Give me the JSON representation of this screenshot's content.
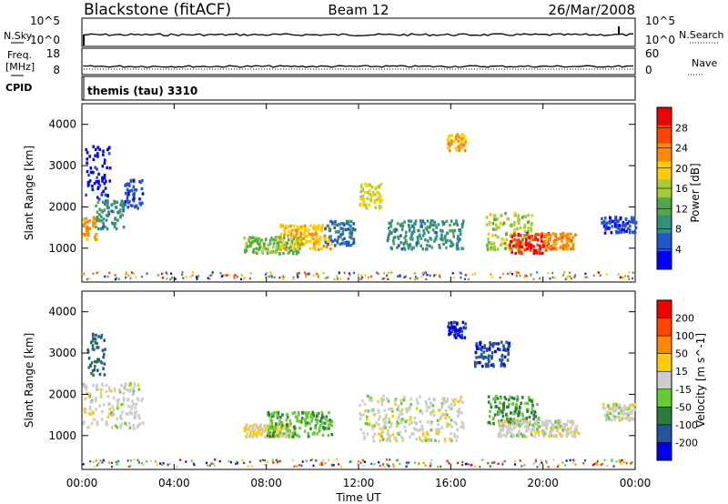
{
  "header": {
    "station": "Blackstone (fitACF)",
    "beam": "Beam 12",
    "date": "26/Mar/2008"
  },
  "left_labels": {
    "nsky": "N.Sky",
    "freq_top": "Freq.",
    "freq_unit": "[MHz]",
    "cpid": "CPID"
  },
  "right_labels": {
    "nsearch": "N.Search",
    "nave": "Nave",
    "nsearch_ticks": [
      "10^5",
      "10^0"
    ],
    "nave_ticks": [
      "60",
      "0"
    ]
  },
  "noise_panel": {
    "left_ticks": [
      "10^5",
      "10^0"
    ],
    "right_ticks": [
      "10^5",
      "10^0"
    ]
  },
  "freq_panel": {
    "left_ticks": [
      "18",
      "8"
    ],
    "right_ticks": [
      "60",
      "0"
    ]
  },
  "cpid_text": "themis (tau) 3310",
  "x_axis": {
    "label": "Time UT",
    "ticks": [
      "00:00",
      "04:00",
      "08:00",
      "12:00",
      "16:00",
      "20:00",
      "00:00"
    ]
  },
  "power_panel": {
    "ylabel": "Slant Range [km]",
    "yticks": [
      "4000",
      "3000",
      "2000",
      "1000"
    ],
    "colorbar_label": "Power [dB]",
    "colorbar_ticks": [
      "28",
      "24",
      "20",
      "16",
      "12",
      "8",
      "4"
    ]
  },
  "velocity_panel": {
    "ylabel": "Slant Range [km]",
    "yticks": [
      "4000",
      "3000",
      "2000",
      "1000"
    ],
    "colorbar_label": "Velocity [m s^-1]",
    "colorbar_ticks": [
      "200",
      "100",
      "50",
      "15",
      "-15",
      "-50",
      "-100",
      "-200"
    ]
  },
  "colors": {
    "power_scale": [
      "#0000ff",
      "#2255cc",
      "#33907f",
      "#55a64a",
      "#a8cc33",
      "#ffcc00",
      "#ff8800",
      "#ff4400",
      "#ee0000"
    ],
    "velocity_scale": [
      "#0000ee",
      "#225599",
      "#2f7a3f",
      "#66cc33",
      "#cccccc",
      "#ffcc00",
      "#ff8800",
      "#ff4400",
      "#ee0000"
    ]
  },
  "chart_data": [
    {
      "type": "heatmap",
      "title": "Power",
      "xlabel": "Time UT",
      "ylabel": "Slant Range [km]",
      "xlim": [
        0,
        24
      ],
      "ylim": [
        180,
        4500
      ],
      "colorbar": {
        "label": "Power [dB]",
        "range": [
          2,
          30
        ]
      },
      "clusters": [
        {
          "t0": 0.0,
          "t1": 0.6,
          "r0": 1200,
          "r1": 1800,
          "value": 22
        },
        {
          "t0": 0.5,
          "t1": 1.8,
          "r0": 1500,
          "r1": 2200,
          "value": 10
        },
        {
          "t0": 1.8,
          "t1": 2.6,
          "r0": 2000,
          "r1": 2700,
          "value": 6
        },
        {
          "t0": 0.1,
          "t1": 1.2,
          "r0": 2200,
          "r1": 3500,
          "value": 4
        },
        {
          "t0": 7.0,
          "t1": 9.5,
          "r0": 900,
          "r1": 1300,
          "value": 14
        },
        {
          "t0": 8.5,
          "t1": 10.8,
          "r0": 1000,
          "r1": 1600,
          "value": 20
        },
        {
          "t0": 10.5,
          "t1": 11.8,
          "r0": 1100,
          "r1": 1700,
          "value": 8
        },
        {
          "t0": 12.0,
          "t1": 13.0,
          "r0": 2000,
          "r1": 2600,
          "value": 18
        },
        {
          "t0": 13.2,
          "t1": 16.5,
          "r0": 1000,
          "r1": 1700,
          "value": 10
        },
        {
          "t0": 15.8,
          "t1": 16.6,
          "r0": 3400,
          "r1": 3800,
          "value": 20
        },
        {
          "t0": 17.5,
          "t1": 19.5,
          "r0": 1000,
          "r1": 1900,
          "value": 16
        },
        {
          "t0": 18.5,
          "t1": 20.2,
          "r0": 900,
          "r1": 1400,
          "value": 27
        },
        {
          "t0": 20.0,
          "t1": 21.4,
          "r0": 1000,
          "r1": 1400,
          "value": 22
        },
        {
          "t0": 22.5,
          "t1": 24.0,
          "r0": 1400,
          "r1": 1800,
          "value": 6
        }
      ]
    },
    {
      "type": "heatmap",
      "title": "Velocity",
      "xlabel": "Time UT",
      "ylabel": "Slant Range [km]",
      "xlim": [
        0,
        24
      ],
      "ylim": [
        180,
        4500
      ],
      "colorbar": {
        "label": "Velocity [m s^-1]",
        "range": [
          -250,
          250
        ]
      },
      "clusters": [
        {
          "t0": 0.0,
          "t1": 2.6,
          "r0": 1200,
          "r1": 2300,
          "value": 0
        },
        {
          "t0": 0.2,
          "t1": 1.0,
          "r0": 2500,
          "r1": 3500,
          "value": -150
        },
        {
          "t0": 7.0,
          "t1": 9.0,
          "r0": 1000,
          "r1": 1300,
          "value": 30
        },
        {
          "t0": 8.0,
          "t1": 10.8,
          "r0": 1000,
          "r1": 1600,
          "value": -70
        },
        {
          "t0": 12.0,
          "t1": 16.5,
          "r0": 900,
          "r1": 2000,
          "value": 0
        },
        {
          "t0": 15.8,
          "t1": 16.6,
          "r0": 3400,
          "r1": 3800,
          "value": -200
        },
        {
          "t0": 17.0,
          "t1": 18.5,
          "r0": 2700,
          "r1": 3300,
          "value": -180
        },
        {
          "t0": 17.5,
          "t1": 19.8,
          "r0": 1300,
          "r1": 2000,
          "value": -90
        },
        {
          "t0": 18.0,
          "t1": 21.5,
          "r0": 1000,
          "r1": 1400,
          "value": 0
        },
        {
          "t0": 22.5,
          "t1": 24.0,
          "r0": 1400,
          "r1": 1800,
          "value": 0
        }
      ]
    }
  ]
}
